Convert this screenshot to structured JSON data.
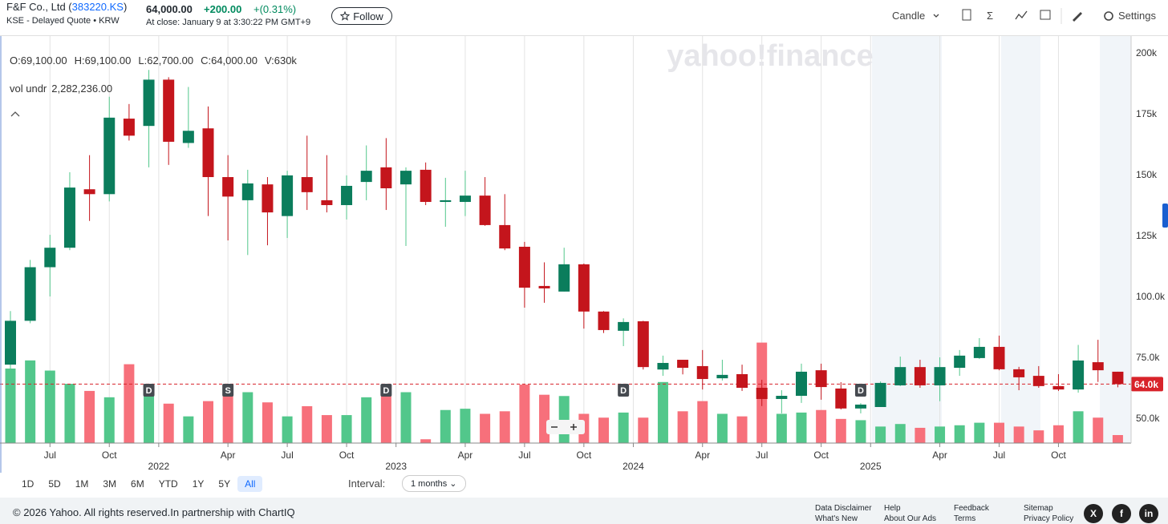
{
  "header": {
    "title_parts": [
      "F&F Co., Ltd (",
      "383220.KS",
      ")"
    ],
    "subtitle": "KSE - Delayed Quote • KRW",
    "price": "64,000.00",
    "change": "+200.00",
    "change_percent": "+(0.31%)",
    "close_time": "At close: January 9 at 3:30:22 PM GMT+9",
    "follow": "Follow",
    "chart_type": "Candle",
    "settings": "Settings"
  },
  "chart_data": {
    "type": "candlestick",
    "watermark": "yahoo!finance",
    "summary": [
      "O:69,100.00",
      "H:69,100.00",
      "L:62,700.00",
      "C:64,000.00",
      "V:630k"
    ],
    "indicator": {
      "name": "vol undr",
      "value": "2,282,236.00"
    },
    "x": [
      "2021-05",
      "2021-06",
      "2021-07",
      "2021-08",
      "2021-09",
      "2021-10",
      "2021-11",
      "2021-12",
      "2022-01",
      "2022-02",
      "2022-03",
      "2022-04",
      "2022-05",
      "2022-06",
      "2022-07",
      "2022-08",
      "2022-09",
      "2022-10",
      "2022-11",
      "2022-12",
      "2023-01",
      "2023-02",
      "2023-03",
      "2023-04",
      "2023-05",
      "2023-06",
      "2023-07",
      "2023-08",
      "2023-09",
      "2023-10",
      "2023-11",
      "2023-12",
      "2024-01",
      "2024-02",
      "2024-03",
      "2024-04",
      "2024-05",
      "2024-06",
      "2024-07",
      "2024-08",
      "2024-09",
      "2024-10",
      "2024-11",
      "2024-12",
      "2025-01",
      "2025-02",
      "2025-03",
      "2025-04",
      "2025-05",
      "2025-06",
      "2025-07",
      "2025-08",
      "2025-09",
      "2025-10",
      "2025-11",
      "2025-12",
      "2026-01"
    ],
    "open": [
      72000,
      90000,
      112000,
      120000,
      144000,
      142000,
      173000,
      170000,
      189000,
      163000,
      169000,
      149000,
      139500,
      146000,
      133000,
      149000,
      139500,
      137500,
      147000,
      153000,
      146000,
      152000,
      138800,
      138800,
      141400,
      129300,
      120400,
      104300,
      102000,
      113200,
      93800,
      85900,
      89800,
      70000,
      74000,
      71400,
      66400,
      68100,
      62500,
      57900,
      59200,
      69700,
      62200,
      54000,
      54600,
      63500,
      71000,
      63500,
      70700,
      74700,
      79300,
      70100,
      67400,
      63200,
      61800,
      73000,
      69100
    ],
    "high": [
      94000,
      115000,
      125300,
      151000,
      158000,
      182000,
      179000,
      193000,
      190000,
      186000,
      178000,
      158000,
      152000,
      149000,
      151600,
      166000,
      158000,
      149700,
      162000,
      165000,
      153000,
      155000,
      148700,
      151600,
      149000,
      142000,
      122400,
      114000,
      120000,
      113500,
      94000,
      91000,
      90000,
      75700,
      74000,
      78000,
      74000,
      72000,
      65800,
      61500,
      72400,
      72400,
      64800,
      56200,
      65100,
      75300,
      74000,
      75000,
      78000,
      82900,
      83900,
      71100,
      71400,
      68100,
      80100,
      82200,
      69100
    ],
    "low": [
      70000,
      89000,
      100000,
      119000,
      131000,
      139000,
      164000,
      153000,
      154000,
      161000,
      133000,
      123000,
      117000,
      121000,
      124000,
      135500,
      134500,
      131600,
      139500,
      135500,
      120700,
      137500,
      128600,
      133000,
      129000,
      119000,
      95400,
      97400,
      102000,
      86800,
      85000,
      79600,
      70000,
      67400,
      68000,
      61800,
      65500,
      61200,
      55000,
      52000,
      56300,
      57600,
      53600,
      52000,
      54600,
      63200,
      62500,
      57000,
      67400,
      74300,
      69700,
      61500,
      62500,
      61200,
      60500,
      64900,
      62700
    ],
    "close": [
      90000,
      112000,
      120000,
      144700,
      142000,
      173400,
      166000,
      189000,
      163500,
      168000,
      149000,
      141000,
      146400,
      134500,
      149700,
      142800,
      137500,
      145400,
      151600,
      144400,
      151600,
      138800,
      139500,
      141400,
      129300,
      119700,
      103600,
      103300,
      113200,
      93800,
      86200,
      89500,
      71000,
      72700,
      70700,
      66100,
      67800,
      62500,
      57900,
      59200,
      69100,
      62800,
      54000,
      55600,
      64500,
      71000,
      63500,
      71000,
      75700,
      79300,
      70100,
      66800,
      63200,
      61800,
      73700,
      69700,
      64000
    ],
    "volume": [
      5860000,
      6500000,
      5700000,
      4660000,
      4100000,
      3600000,
      6200000,
      4600000,
      3100000,
      2100000,
      3300000,
      3800000,
      4000000,
      3200000,
      2100000,
      2900000,
      2200000,
      2200000,
      3600000,
      4000000,
      4000000,
      300000,
      2600000,
      2700000,
      2300000,
      2500000,
      4600000,
      3800000,
      3700000,
      2300000,
      2000000,
      2400000,
      2000000,
      4800000,
      2500000,
      3300000,
      2300000,
      2100000,
      7900000,
      2300000,
      2400000,
      2600000,
      1900000,
      1800000,
      1300000,
      1500000,
      1200000,
      1300000,
      1400000,
      1600000,
      1600000,
      1300000,
      1000000,
      1400000,
      2500000,
      2000000,
      630000
    ],
    "up_color": "#0b7d5c",
    "down_color": "#c4151c",
    "volume_up_color": "#52c78b",
    "volume_down_color": "#f7707b",
    "ylim": [
      39800,
      206900
    ],
    "yticks": [
      {
        "value": 50000,
        "label": "50.0k"
      },
      {
        "value": 75000,
        "label": "75.0k"
      },
      {
        "value": 100000,
        "label": "100.0k"
      },
      {
        "value": 125000,
        "label": "125k"
      },
      {
        "value": 150000,
        "label": "150k"
      },
      {
        "value": 175000,
        "label": "175k"
      },
      {
        "value": 200000,
        "label": "200k"
      }
    ],
    "volume_lim": [
      0,
      32000000
    ],
    "xticks": [
      {
        "value": "2021-07",
        "label": "Jul"
      },
      {
        "value": "2021-10",
        "label": "Oct"
      },
      "2022",
      {
        "value": "2022-04",
        "label": "Apr"
      },
      {
        "value": "2022-07",
        "label": "Jul"
      },
      {
        "value": "2022-10",
        "label": "Oct"
      },
      "2023",
      {
        "value": "2023-04",
        "label": "Apr"
      },
      {
        "value": "2023-07",
        "label": "Jul"
      },
      {
        "value": "2023-10",
        "label": "Oct"
      },
      "2024",
      {
        "value": "2024-04",
        "label": "Apr"
      },
      {
        "value": "2024-07",
        "label": "Jul"
      },
      {
        "value": "2024-10",
        "label": "Oct"
      },
      "2025",
      {
        "value": "2025-04",
        "label": "Apr"
      },
      {
        "value": "2025-07",
        "label": "Jul"
      },
      {
        "value": "2025-10",
        "label": "Oct"
      }
    ],
    "grid": true,
    "last_price": {
      "value": 64000,
      "label": "64.0k"
    },
    "last_price_color": "#d8232a",
    "events": [
      {
        "x": "2021-12",
        "label": "D"
      },
      {
        "x": "2022-04",
        "label": "S"
      },
      {
        "x": "2022-12",
        "label": "D"
      },
      {
        "x": "2023-12",
        "label": "D"
      },
      {
        "x": "2024-12",
        "label": "D"
      }
    ]
  },
  "ranges": [
    "1D",
    "5D",
    "1M",
    "3M",
    "6M",
    "YTD",
    "1Y",
    "5Y",
    "All"
  ],
  "active_range": 8,
  "interval_label": "Interval:",
  "interval": "1 months",
  "footer": {
    "copyright": "© 2026 Yahoo. All rights reserved.In partnership with ChartIQ",
    "links": [
      [
        "Data Disclaimer",
        "What's New"
      ],
      [
        "Help",
        "About Our Ads"
      ],
      [
        "Feedback",
        "Terms"
      ],
      [
        "Sitemap",
        "Privacy Policy"
      ]
    ]
  }
}
